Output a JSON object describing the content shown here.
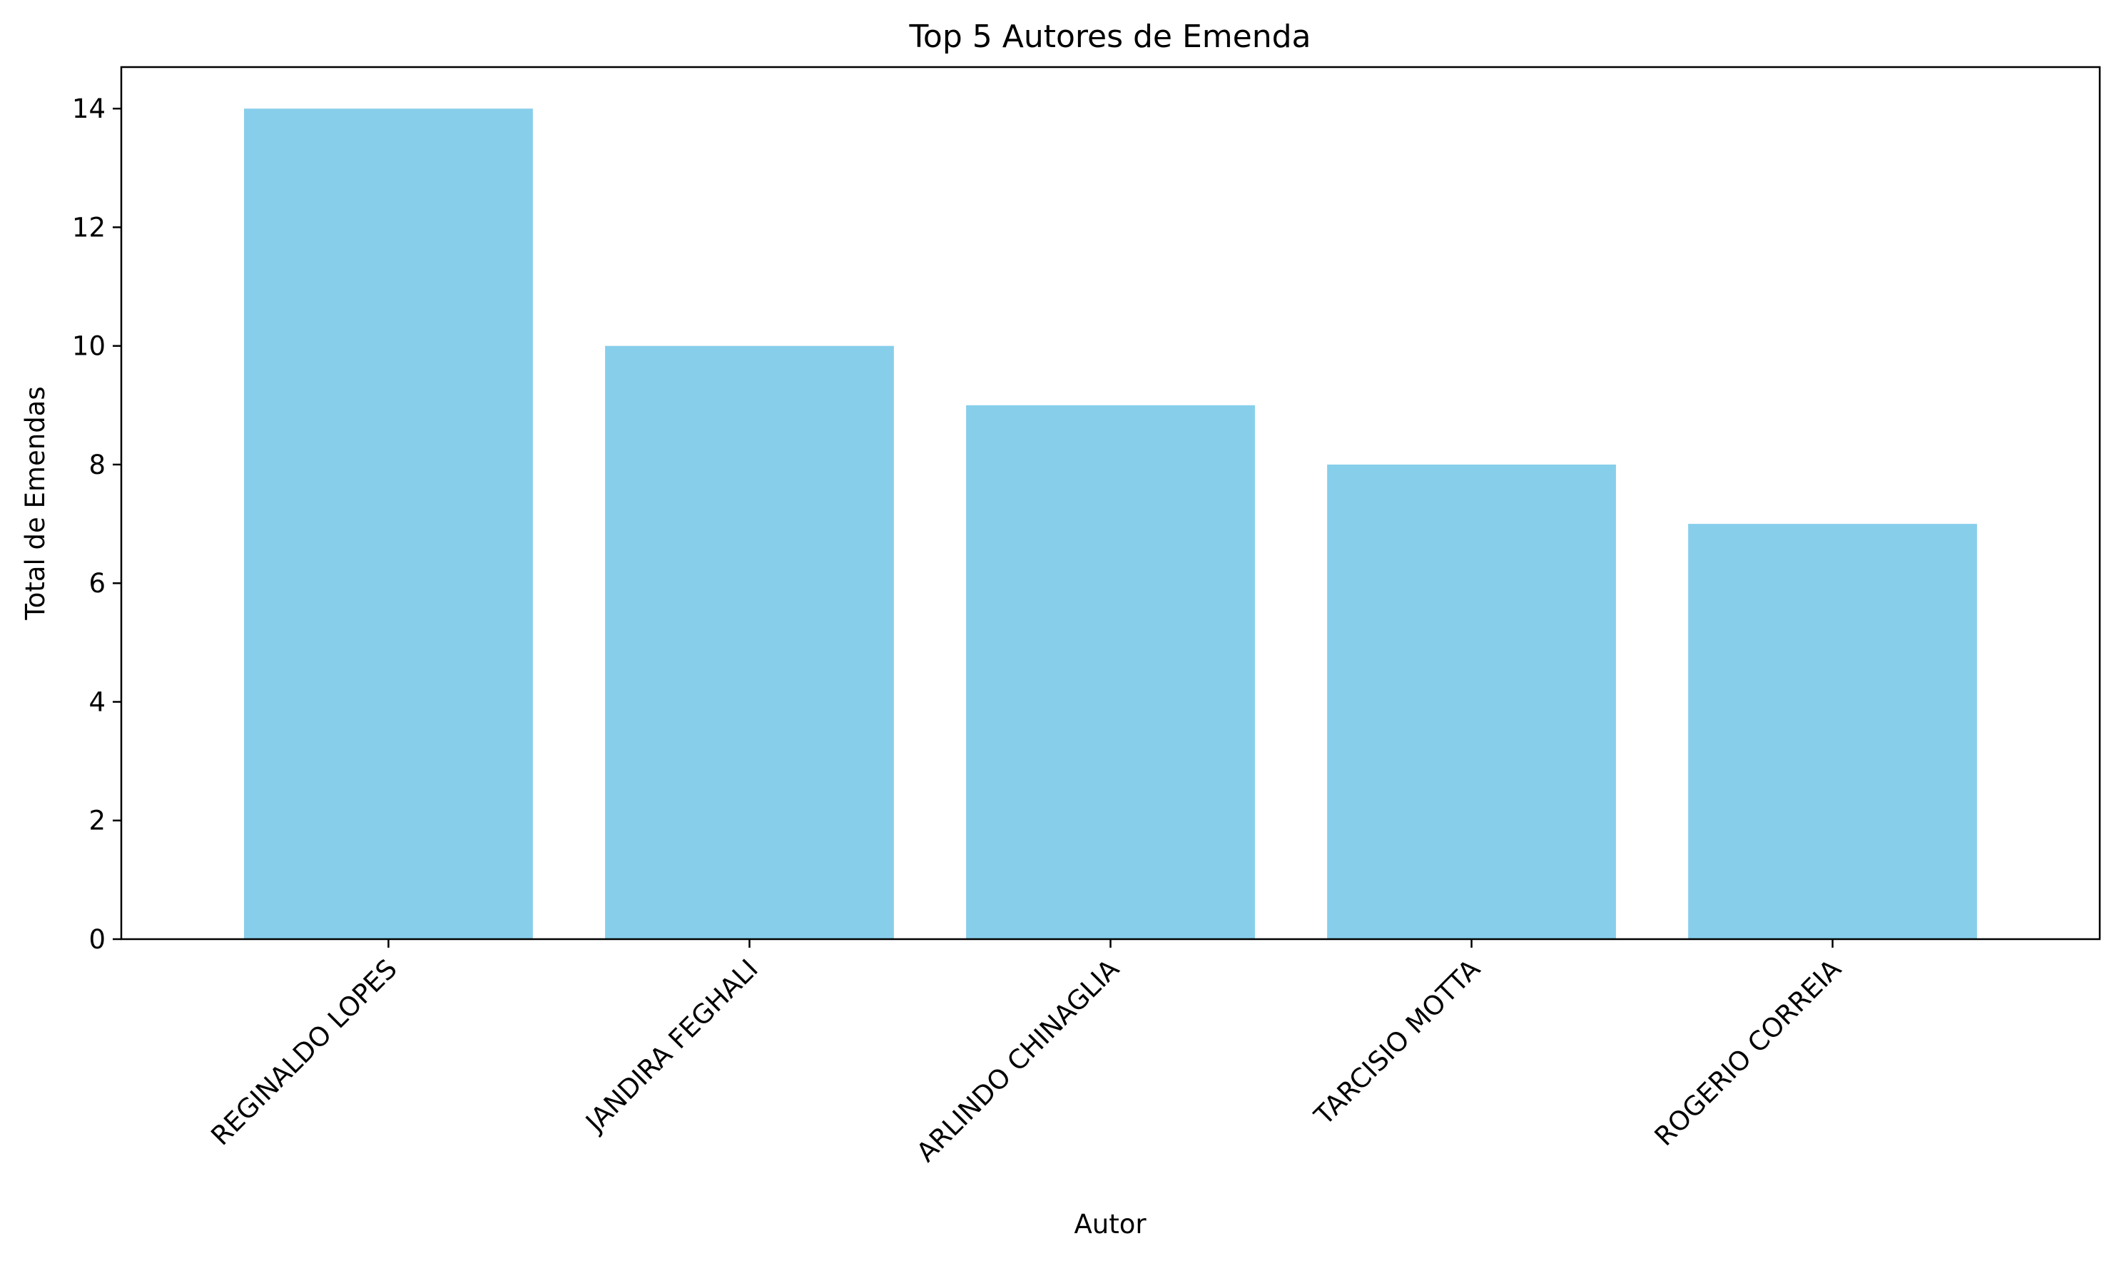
{
  "chart_data": {
    "type": "bar",
    "title": "Top 5 Autores de Emenda",
    "xlabel": "Autor",
    "ylabel": "Total de Emendas",
    "categories": [
      "REGINALDO LOPES",
      "JANDIRA FEGHALI",
      "ARLINDO CHINAGLIA",
      "TARCISIO MOTTA",
      "ROGERIO CORREIA"
    ],
    "values": [
      14,
      10,
      9,
      8,
      7
    ],
    "ylim": [
      0,
      14.7
    ],
    "yticks": [
      0,
      2,
      4,
      6,
      8,
      10,
      12,
      14
    ],
    "bar_color": "#87CEEB",
    "grid": false,
    "xtick_rotation": 45
  }
}
